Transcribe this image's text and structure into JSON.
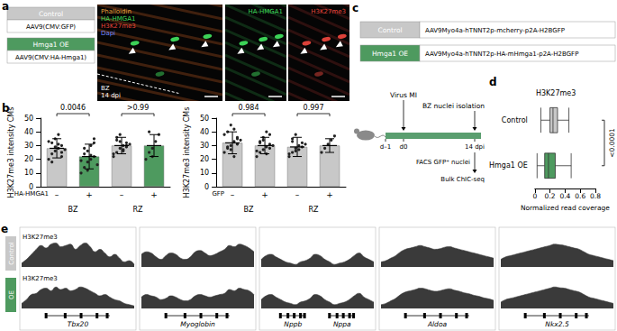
{
  "panel_labels": [
    "a",
    "b",
    "c",
    "d",
    "e"
  ],
  "panel_a": {
    "legend": [
      {
        "label": "Control",
        "construct": "AAV9(CMV:GFP)",
        "color": "#c8c8c8"
      },
      {
        "label": "Hmga1 OE",
        "construct": "AAV9(CMV:HA-Hmga1)",
        "color": "#4e9a5f"
      }
    ],
    "images": [
      {
        "channels": [
          {
            "text": "Phalloidin",
            "color": "#e8a33c"
          },
          {
            "text": "HA-HMGA1",
            "color": "#3fdc5c"
          },
          {
            "text": "H3K27me3",
            "color": "#e8453c"
          },
          {
            "text": "Dapi",
            "color": "#6a86ff"
          }
        ],
        "annotations": [
          "BZ",
          "14 dpi"
        ]
      },
      {
        "channels": [
          {
            "text": "HA-HMGA1",
            "color": "#3fdc5c"
          }
        ]
      },
      {
        "channels": [
          {
            "text": "H3K27me3",
            "color": "#e8453c"
          }
        ]
      }
    ]
  },
  "panel_c": {
    "rows": [
      {
        "label": "Control",
        "construct": "AAV9Myo4a-hTNNT2p-mcherry-p2A-H2BGFP",
        "color": "#c8c8c8"
      },
      {
        "label": "Hmga1 OE",
        "construct": "AAV9Myo4a-hTNNT2p-HA-mHmga1-p2A-H2BGFP",
        "color": "#4e9a5f"
      }
    ]
  },
  "schematic": {
    "color": "#5a9e6f",
    "events": [
      "Virus MI",
      "BZ nuclei isolation"
    ],
    "timepoints": [
      "d–1",
      "d0",
      "14 dpi"
    ],
    "steps": [
      "FACS GFP⁺ nuclei",
      "Bulk ChIC-seq"
    ]
  },
  "chart_data": [
    {
      "type": "bar",
      "ylabel": "H3K27me3 intensity CMs",
      "factor": "HA-HMGA1",
      "categories": [
        "–",
        "+",
        "–",
        "+"
      ],
      "groups": [
        "BZ",
        "RZ"
      ],
      "p_values": [
        "0.0046",
        ">0.99"
      ],
      "values": [
        28,
        22,
        30,
        30
      ],
      "errors": [
        7,
        9,
        6,
        8
      ],
      "points": [
        [
          20,
          24,
          26,
          28,
          30,
          32,
          35,
          38,
          22,
          27,
          33,
          18,
          29,
          31,
          25
        ],
        [
          10,
          14,
          18,
          20,
          22,
          24,
          26,
          30,
          35,
          16,
          19,
          28,
          12,
          23,
          32
        ],
        [
          22,
          25,
          28,
          30,
          32,
          34,
          38,
          27,
          29,
          31,
          24,
          36,
          33,
          26,
          30
        ],
        [
          20,
          25,
          28,
          33,
          38,
          40,
          22
        ]
      ],
      "colors": [
        "#c8c8c8",
        "#4e9a5f",
        "#c8c8c8",
        "#4e9a5f"
      ],
      "ylim": [
        0,
        50
      ],
      "yticks": [
        0,
        10,
        20,
        30,
        40,
        50
      ],
      "grid": false
    },
    {
      "type": "bar",
      "ylabel": "H3K27me3 intensity CMs",
      "factor": "GFP",
      "categories": [
        "–",
        "+",
        "–",
        "+"
      ],
      "groups": [
        "BZ",
        "RZ"
      ],
      "p_values": [
        "0.984",
        "0.997"
      ],
      "values": [
        32,
        30,
        29,
        30
      ],
      "errors": [
        8,
        6,
        7,
        5
      ],
      "points": [
        [
          25,
          28,
          30,
          33,
          36,
          40,
          45,
          22,
          31,
          34,
          38,
          29,
          27,
          42,
          35
        ],
        [
          22,
          25,
          27,
          29,
          31,
          33,
          36,
          40,
          28,
          30,
          26,
          32,
          34,
          24,
          38
        ],
        [
          22,
          25,
          28,
          30,
          32,
          35,
          38,
          27,
          29,
          31,
          24,
          33,
          26
        ],
        [
          25,
          28,
          31,
          34,
          37
        ]
      ],
      "colors": [
        "#c8c8c8",
        "#c8c8c8",
        "#c8c8c8",
        "#c8c8c8"
      ],
      "ylim": [
        0,
        50
      ],
      "yticks": [
        0,
        10,
        20,
        30,
        40,
        50
      ],
      "grid": false
    },
    {
      "type": "boxplot",
      "title": "H3K27me3",
      "orientation": "horizontal",
      "categories": [
        "Control",
        "Hmga1 OE"
      ],
      "boxes": [
        [
          0.08,
          0.2,
          0.24,
          0.3,
          0.45
        ],
        [
          0.03,
          0.13,
          0.18,
          0.27,
          0.48
        ]
      ],
      "colors": [
        "#c8c8c8",
        "#4e9a5f"
      ],
      "p_value": "<0.0001",
      "xlabel": "Normalized read coverage",
      "xlim": [
        0,
        0.8
      ],
      "xticks": [
        0,
        0.2,
        0.4,
        0.6,
        0.8
      ],
      "grid": false
    },
    {
      "type": "area",
      "tick_labels": false,
      "ylim": [
        0,
        1
      ],
      "genes": [
        [
          "Tbx20"
        ],
        [
          "Myoglobin"
        ],
        [
          "Nppb",
          "Nppa"
        ],
        [
          "Aldoa"
        ],
        [
          "Nkx2.5"
        ]
      ],
      "series": [
        {
          "name": "Control",
          "label": "H3K27me3",
          "color": "#3a3a3a",
          "tracks": [
            [
              0.15,
              0.3,
              0.5,
              0.7,
              0.85,
              0.75,
              0.9,
              0.95,
              0.8,
              0.85,
              0.9,
              0.7,
              0.85,
              0.95,
              0.8,
              0.6,
              0.7,
              0.55,
              0.4,
              0.5,
              0.35,
              0.2,
              0.25,
              0.1
            ],
            [
              0.5,
              0.6,
              0.55,
              0.4,
              0.3,
              0.45,
              0.55,
              0.5,
              0.35,
              0.3,
              0.4,
              0.6,
              0.65,
              0.55,
              0.45,
              0.5,
              0.6,
              0.7,
              0.85,
              0.8,
              0.9,
              0.85,
              0.75,
              0.6
            ],
            [
              0.3,
              0.45,
              0.5,
              0.4,
              0.3,
              0.2,
              0.15,
              0.1,
              0.2,
              0.25,
              0.35,
              0.5,
              0.45,
              0.3,
              0.2,
              0.1,
              0.15,
              0.2,
              0.3,
              0.45,
              0.55,
              0.4,
              0.3,
              0.2
            ],
            [
              0.2,
              0.25,
              0.35,
              0.45,
              0.6,
              0.7,
              0.75,
              0.8,
              0.85,
              0.8,
              0.75,
              0.7,
              0.72,
              0.78,
              0.8,
              0.75,
              0.7,
              0.65,
              0.6,
              0.55,
              0.5,
              0.45,
              0.4,
              0.35
            ],
            [
              0.3,
              0.4,
              0.45,
              0.5,
              0.55,
              0.6,
              0.65,
              0.7,
              0.75,
              0.8,
              0.85,
              0.9,
              0.88,
              0.85,
              0.8,
              0.75,
              0.7,
              0.6,
              0.5,
              0.45,
              0.4,
              0.35,
              0.3,
              0.25
            ]
          ]
        },
        {
          "name": "OE",
          "label": "H3K27me3",
          "color": "#3a3a3a",
          "tracks": [
            [
              0.2,
              0.35,
              0.55,
              0.6,
              0.75,
              0.8,
              0.7,
              0.85,
              0.75,
              0.8,
              0.7,
              0.75,
              0.85,
              0.8,
              0.7,
              0.6,
              0.5,
              0.55,
              0.45,
              0.35,
              0.3,
              0.2,
              0.15,
              0.1
            ],
            [
              0.45,
              0.55,
              0.5,
              0.45,
              0.35,
              0.4,
              0.5,
              0.45,
              0.35,
              0.3,
              0.35,
              0.5,
              0.55,
              0.5,
              0.45,
              0.5,
              0.55,
              0.6,
              0.75,
              0.7,
              0.8,
              0.75,
              0.7,
              0.55
            ],
            [
              0.35,
              0.5,
              0.55,
              0.45,
              0.35,
              0.25,
              0.2,
              0.15,
              0.25,
              0.3,
              0.4,
              0.55,
              0.5,
              0.35,
              0.25,
              0.15,
              0.2,
              0.25,
              0.35,
              0.5,
              0.6,
              0.45,
              0.35,
              0.25
            ],
            [
              0.15,
              0.2,
              0.3,
              0.4,
              0.55,
              0.65,
              0.7,
              0.75,
              0.8,
              0.78,
              0.72,
              0.68,
              0.7,
              0.75,
              0.78,
              0.72,
              0.68,
              0.62,
              0.58,
              0.52,
              0.48,
              0.42,
              0.38,
              0.32
            ],
            [
              0.25,
              0.35,
              0.4,
              0.45,
              0.5,
              0.55,
              0.6,
              0.65,
              0.7,
              0.75,
              0.8,
              0.85,
              0.82,
              0.8,
              0.75,
              0.7,
              0.65,
              0.55,
              0.45,
              0.4,
              0.35,
              0.3,
              0.25,
              0.2
            ]
          ]
        }
      ]
    }
  ]
}
